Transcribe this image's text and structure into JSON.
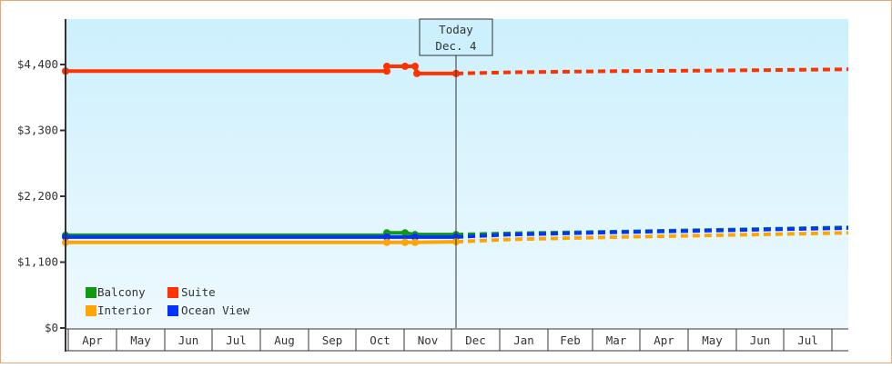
{
  "chart_data": {
    "type": "line",
    "title": "",
    "xlabel": "",
    "ylabel": "",
    "ylim": [
      0,
      4400
    ],
    "y_ticks": [
      "$0",
      "$1,100",
      "$2,200",
      "$3,300",
      "$4,400"
    ],
    "y_tick_values": [
      0,
      1100,
      2200,
      3300,
      4400
    ],
    "categories": [
      "Apr",
      "May",
      "Jun",
      "Jul",
      "Aug",
      "Sep",
      "Oct",
      "Nov",
      "Dec",
      "Jan",
      "Feb",
      "Mar",
      "Apr",
      "May",
      "Jun",
      "Jul"
    ],
    "today_marker": {
      "line1": "Today",
      "line2": "Dec. 4"
    },
    "legend": [
      {
        "name": "Balcony",
        "color": "#119911"
      },
      {
        "name": "Suite",
        "color": "#ff3300"
      },
      {
        "name": "Interior",
        "color": "#ffa500"
      },
      {
        "name": "Ocean View",
        "color": "#0033ff"
      }
    ],
    "grid": false,
    "legend_position": "bottom-left inside",
    "series": [
      {
        "name": "Suite",
        "color": "#ff3300",
        "historical": [
          {
            "x": "Apr 1",
            "y": 4290
          },
          {
            "x": "Oct 8",
            "y": 4290
          },
          {
            "x": "Oct 8",
            "y": 4370
          },
          {
            "x": "Oct 28",
            "y": 4370
          },
          {
            "x": "Nov 4",
            "y": 4370
          },
          {
            "x": "Nov 5",
            "y": 4250
          },
          {
            "x": "Dec 4",
            "y": 4250
          }
        ],
        "forecast": [
          {
            "x": "Dec 4",
            "y": 4250
          },
          {
            "x": "Jan",
            "y": 4270
          },
          {
            "x": "Mar",
            "y": 4290
          },
          {
            "x": "May",
            "y": 4300
          },
          {
            "x": "Jul",
            "y": 4320
          }
        ]
      },
      {
        "name": "Balcony",
        "color": "#119911",
        "historical": [
          {
            "x": "Apr 1",
            "y": 1550
          },
          {
            "x": "Oct 8",
            "y": 1550
          },
          {
            "x": "Oct 8",
            "y": 1590
          },
          {
            "x": "Oct 28",
            "y": 1590
          },
          {
            "x": "Nov 4",
            "y": 1560
          },
          {
            "x": "Dec 4",
            "y": 1560
          }
        ],
        "forecast": [
          {
            "x": "Dec 4",
            "y": 1560
          },
          {
            "x": "Jan",
            "y": 1580
          },
          {
            "x": "Mar",
            "y": 1610
          },
          {
            "x": "May",
            "y": 1640
          },
          {
            "x": "Jul",
            "y": 1680
          }
        ]
      },
      {
        "name": "Ocean View",
        "color": "#0033ff",
        "historical": [
          {
            "x": "Apr 1",
            "y": 1520
          },
          {
            "x": "Oct 8",
            "y": 1520
          },
          {
            "x": "Nov 4",
            "y": 1520
          },
          {
            "x": "Dec 4",
            "y": 1520
          }
        ],
        "forecast": [
          {
            "x": "Dec 4",
            "y": 1520
          },
          {
            "x": "Jan",
            "y": 1560
          },
          {
            "x": "Mar",
            "y": 1600
          },
          {
            "x": "May",
            "y": 1630
          },
          {
            "x": "Jul",
            "y": 1670
          }
        ]
      },
      {
        "name": "Interior",
        "color": "#ffa500",
        "historical": [
          {
            "x": "Apr 1",
            "y": 1430
          },
          {
            "x": "Oct 8",
            "y": 1430
          },
          {
            "x": "Oct 28",
            "y": 1430
          },
          {
            "x": "Nov 4",
            "y": 1430
          },
          {
            "x": "Dec 4",
            "y": 1440
          }
        ],
        "forecast": [
          {
            "x": "Dec 4",
            "y": 1440
          },
          {
            "x": "Jan",
            "y": 1480
          },
          {
            "x": "Mar",
            "y": 1520
          },
          {
            "x": "May",
            "y": 1550
          },
          {
            "x": "Jul",
            "y": 1590
          }
        ]
      }
    ]
  }
}
